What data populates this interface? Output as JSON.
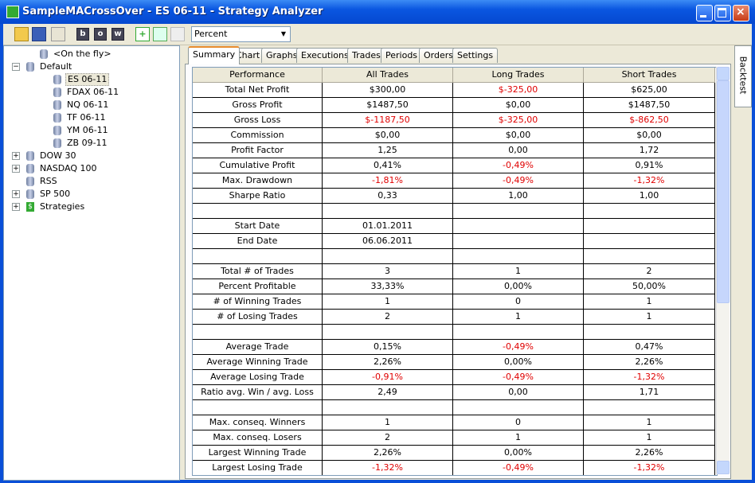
{
  "window": {
    "title": "SampleMACrossOver - ES 06-11 - Strategy Analyzer"
  },
  "toolbar": {
    "buttons": [
      "b",
      "o",
      "w"
    ],
    "dropdown": "Percent"
  },
  "tree": [
    {
      "label": "<On the fly>",
      "level": 1
    },
    {
      "label": "Default",
      "level": 0,
      "expander": "minus"
    },
    {
      "label": "ES 06-11",
      "level": 2,
      "selected": true
    },
    {
      "label": "FDAX 06-11",
      "level": 2
    },
    {
      "label": "NQ 06-11",
      "level": 2
    },
    {
      "label": "TF 06-11",
      "level": 2
    },
    {
      "label": "YM 06-11",
      "level": 2
    },
    {
      "label": "ZB 09-11",
      "level": 2
    },
    {
      "label": "DOW 30",
      "level": 0,
      "expander": "plus"
    },
    {
      "label": "NASDAQ 100",
      "level": 0,
      "expander": "plus"
    },
    {
      "label": "RSS",
      "level": 0
    },
    {
      "label": "SP 500",
      "level": 0,
      "expander": "plus"
    },
    {
      "label": "Strategies",
      "level": 0,
      "expander": "plus",
      "icon": "strategy"
    }
  ],
  "tabs": [
    "Summary",
    "Chart",
    "Graphs",
    "Executions",
    "Trades",
    "Periods",
    "Orders",
    "Settings"
  ],
  "active_tab": 0,
  "side_tab": "Backtest",
  "negative_color": "#e00000",
  "table": {
    "header": [
      "Performance",
      "All Trades",
      "Long Trades",
      "Short Trades"
    ],
    "rows": [
      [
        "Total Net Profit",
        "$300,00",
        "$-325,00",
        "$625,00"
      ],
      [
        "Gross Profit",
        "$1487,50",
        "$0,00",
        "$1487,50"
      ],
      [
        "Gross Loss",
        "$-1187,50",
        "$-325,00",
        "$-862,50"
      ],
      [
        "Commission",
        "$0,00",
        "$0,00",
        "$0,00"
      ],
      [
        "Profit Factor",
        "1,25",
        "0,00",
        "1,72"
      ],
      [
        "Cumulative Profit",
        "0,41%",
        "-0,49%",
        "0,91%"
      ],
      [
        "Max. Drawdown",
        "-1,81%",
        "-0,49%",
        "-1,32%"
      ],
      [
        "Sharpe Ratio",
        "0,33",
        "1,00",
        "1,00"
      ],
      null,
      [
        "Start Date",
        "01.01.2011"
      ],
      [
        "End Date",
        "06.06.2011"
      ],
      null,
      [
        "Total # of Trades",
        "3",
        "1",
        "2"
      ],
      [
        "Percent Profitable",
        "33,33%",
        "0,00%",
        "50,00%"
      ],
      [
        "# of Winning Trades",
        "1",
        "0",
        "1"
      ],
      [
        "# of Losing Trades",
        "2",
        "1",
        "1"
      ],
      null,
      [
        "Average Trade",
        "0,15%",
        "-0,49%",
        "0,47%"
      ],
      [
        "Average Winning Trade",
        "2,26%",
        "0,00%",
        "2,26%"
      ],
      [
        "Average Losing Trade",
        "-0,91%",
        "-0,49%",
        "-1,32%"
      ],
      [
        "Ratio avg. Win / avg. Loss",
        "2,49",
        "0,00",
        "1,71"
      ],
      null,
      [
        "Max. conseq. Winners",
        "1",
        "0",
        "1"
      ],
      [
        "Max. conseq. Losers",
        "2",
        "1",
        "1"
      ],
      [
        "Largest Winning Trade",
        "2,26%",
        "0,00%",
        "2,26%"
      ],
      [
        "Largest Losing Trade",
        "-1,32%",
        "-0,49%",
        "-1,32%"
      ]
    ]
  }
}
